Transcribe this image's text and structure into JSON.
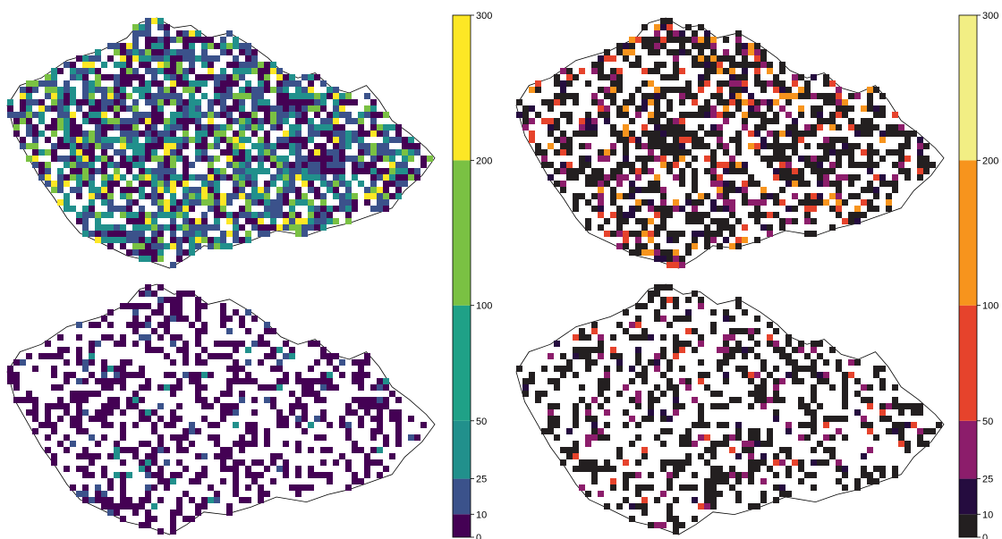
{
  "colorbars": [
    {
      "name": "viridis",
      "ticks": [
        "0",
        "10",
        "25",
        "50",
        "100",
        "200",
        "300"
      ],
      "colors": [
        "#440154",
        "#3b528b",
        "#21908c",
        "#1fa187",
        "#7ac143",
        "#fde725"
      ]
    },
    {
      "name": "inferno",
      "ticks": [
        "0",
        "10",
        "25",
        "50",
        "100",
        "200",
        "300"
      ],
      "colors": [
        "#231f20",
        "#250c3f",
        "#8c1d6b",
        "#e6432c",
        "#f7941d",
        "#f2ee84"
      ]
    }
  ],
  "panels": [
    {
      "name": "panel-top-left",
      "palette": "viridis",
      "density": 0.78
    },
    {
      "name": "panel-bottom-left",
      "palette": "viridis-low",
      "density": 0.38
    },
    {
      "name": "panel-top-right",
      "palette": "inferno",
      "density": 0.55
    },
    {
      "name": "panel-bottom-right",
      "palette": "inferno-low",
      "density": 0.35
    }
  ]
}
